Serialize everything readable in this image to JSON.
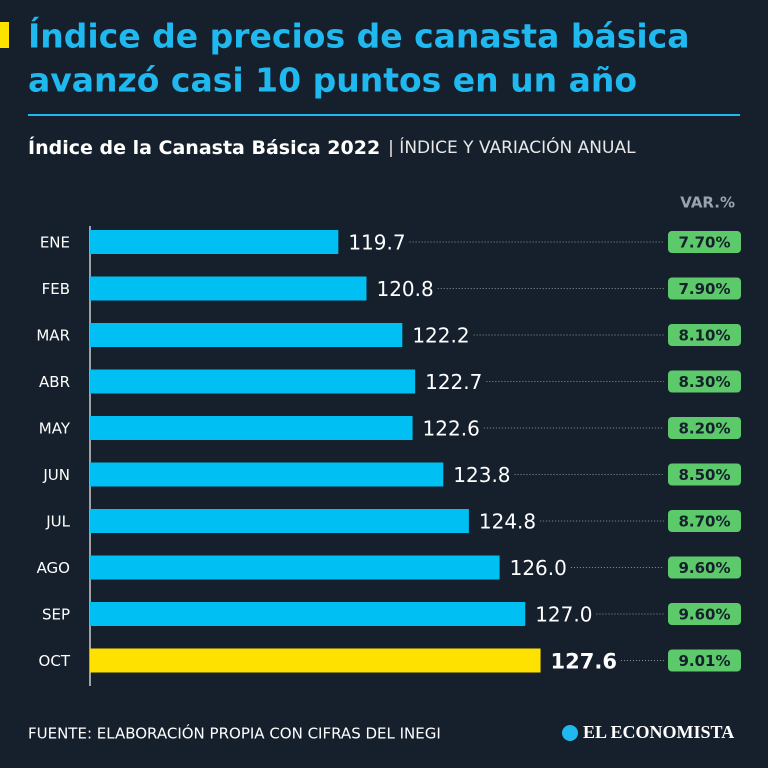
{
  "header": {
    "title_line1": "Índice de precios de canasta básica",
    "title_line2": "avanzó casi 10 puntos en un año"
  },
  "chart_data": {
    "type": "bar",
    "orientation": "horizontal",
    "title": "Índice de la Canasta Básica 2022",
    "subtitle": "| ÍNDICE Y VARIACIÓN ANUAL",
    "categories": [
      "ENE",
      "FEB",
      "MAR",
      "ABR",
      "MAY",
      "JUN",
      "JUL",
      "AGO",
      "SEP",
      "OCT"
    ],
    "values": [
      119.7,
      120.8,
      122.2,
      122.7,
      122.6,
      123.8,
      124.8,
      126,
      127,
      127.6
    ],
    "value_labels": [
      "119.7",
      "120.8",
      "122.2",
      "122.7",
      "122.6",
      "123.8",
      "124.8",
      "126.0",
      "127.0",
      "127.6"
    ],
    "colors": [
      "#00bff3",
      "#00bff3",
      "#00bff3",
      "#00bff3",
      "#00bff3",
      "#00bff3",
      "#00bff3",
      "#00bff3",
      "#00bff3",
      "#ffe100"
    ],
    "xlim": [
      110,
      130
    ],
    "variation": {
      "title": "VAR.%",
      "color": "#5cc96a",
      "values": [
        7.7,
        7.9,
        8.1,
        8.3,
        8.2,
        8.5,
        8.7,
        9.6,
        9.6,
        9.01
      ],
      "value_labels": [
        "7.70%",
        "7.90%",
        "8.10%",
        "8.30%",
        "8.20%",
        "8.50%",
        "8.70%",
        "9.60%",
        "9.60%",
        "9.01%"
      ]
    }
  },
  "footer": {
    "source": "FUENTE: ELABORACIÓN PROPIA CON CIFRAS DEL INEGI",
    "logo": "EL ECONOMISTA"
  }
}
